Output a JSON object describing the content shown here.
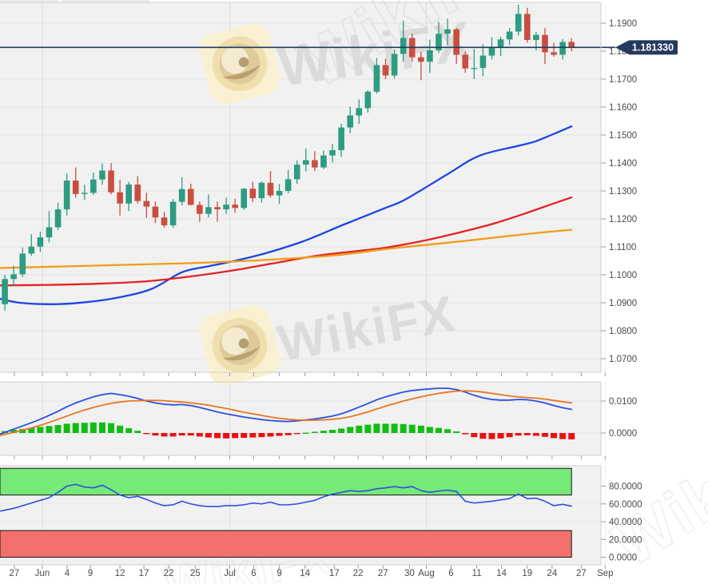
{
  "app": {
    "watermark_text": "WikiFX",
    "price_label": "1.181330"
  },
  "colors": {
    "candle_up": "#2d9c80",
    "candle_down": "#c94e3f",
    "ma_fast": "#1b46e3",
    "ma_mid": "#e32222",
    "ma_slow": "#f29b1b",
    "macd_line": "#2b50e0",
    "macd_signal": "#e8761f",
    "hist_up": "#12bd12",
    "hist_down": "#ea1111",
    "rsi_line": "#2b50e0",
    "band_green": "#76e976",
    "band_red": "#f3716c",
    "band_border": "#161616",
    "price_line": "#1f3b62",
    "label_bg": "#24395e",
    "label_text": "#ffffff",
    "panel_bg": "#f1f1f1",
    "grid": "#e4e4e4",
    "grid_month": "#dcdcdc",
    "grid_faint": "#ececec",
    "border": "#cfcfcf",
    "tick_text": "#4a4a4a",
    "axis_dash": "#999999",
    "watermark_gray": "#d8d8d8",
    "watermark_logo_bg": "#f8efcd",
    "watermark_logo_ring": "#efdfae",
    "watermark_logo_core": "#d9c08b"
  },
  "x_axis": {
    "ticks": [
      {
        "label": "27",
        "i": 2.07
      },
      {
        "label": "Jun",
        "i": 5.23
      },
      {
        "label": "4",
        "i": 8.03
      },
      {
        "label": "9",
        "i": 10.65
      },
      {
        "label": "12",
        "i": 14.0
      },
      {
        "label": "17",
        "i": 16.7
      },
      {
        "label": "22",
        "i": 19.5
      },
      {
        "label": "25",
        "i": 22.5
      },
      {
        "label": "Jul",
        "i": 26.4
      },
      {
        "label": "6",
        "i": 29.1
      },
      {
        "label": "9",
        "i": 32.0
      },
      {
        "label": "14",
        "i": 34.9
      },
      {
        "label": "17",
        "i": 38.2
      },
      {
        "label": "22",
        "i": 40.9
      },
      {
        "label": "27",
        "i": 43.7
      },
      {
        "label": "30",
        "i": 46.7
      },
      {
        "label": "Aug",
        "i": 48.6
      },
      {
        "label": "6",
        "i": 51.4
      },
      {
        "label": "11",
        "i": 54.3
      },
      {
        "label": "14",
        "i": 57.1
      },
      {
        "label": "19",
        "i": 60.0
      },
      {
        "label": "24",
        "i": 62.8
      },
      {
        "label": "27",
        "i": 66.1
      },
      {
        "label": "Sep",
        "i": 68.8
      }
    ],
    "month_labels": [
      "Jun",
      "Jul",
      "Aug",
      "Sep"
    ]
  },
  "chart_data": [
    {
      "type": "candlestick",
      "name": "price-panel",
      "ylim": [
        1.0651,
        1.1974
      ],
      "y_ticks": [
        {
          "label": "1.1900",
          "v": 1.19
        },
        {
          "label": "1.1800",
          "v": 1.18
        },
        {
          "label": "1.1700",
          "v": 1.17
        },
        {
          "label": "1.1600",
          "v": 1.16
        },
        {
          "label": "1.1500",
          "v": 1.15
        },
        {
          "label": "1.1400",
          "v": 1.14
        },
        {
          "label": "1.1300",
          "v": 1.13
        },
        {
          "label": "1.1200",
          "v": 1.12
        },
        {
          "label": "1.1100",
          "v": 1.11
        },
        {
          "label": "1.1000",
          "v": 1.1
        },
        {
          "label": "1.0900",
          "v": 1.09
        },
        {
          "label": "1.0800",
          "v": 1.08
        },
        {
          "label": "1.0700",
          "v": 1.07
        }
      ],
      "price_line_value": 1.18133,
      "candles": [
        [
          1.0912,
          1.0925,
          1.0878,
          1.0895
        ],
        [
          1.0895,
          1.1,
          1.0872,
          1.0985
        ],
        [
          1.0985,
          1.1032,
          1.096,
          1.1002
        ],
        [
          1.1002,
          1.1098,
          1.0992,
          1.1076
        ],
        [
          1.1076,
          1.1145,
          1.1068,
          1.1101
        ],
        [
          1.1101,
          1.1154,
          1.1082,
          1.1134
        ],
        [
          1.1134,
          1.1228,
          1.1116,
          1.117
        ],
        [
          1.117,
          1.1258,
          1.116,
          1.1234
        ],
        [
          1.1234,
          1.1362,
          1.1212,
          1.1337
        ],
        [
          1.1337,
          1.1384,
          1.1276,
          1.1289
        ],
        [
          1.1289,
          1.1322,
          1.1268,
          1.1293
        ],
        [
          1.1293,
          1.1366,
          1.1285,
          1.1341
        ],
        [
          1.1341,
          1.1398,
          1.1322,
          1.1373
        ],
        [
          1.1373,
          1.14,
          1.1288,
          1.1295
        ],
        [
          1.1295,
          1.134,
          1.1212,
          1.1255
        ],
        [
          1.1255,
          1.1333,
          1.1228,
          1.1323
        ],
        [
          1.1323,
          1.1353,
          1.1255,
          1.1264
        ],
        [
          1.1264,
          1.1294,
          1.1204,
          1.1244
        ],
        [
          1.1244,
          1.1262,
          1.1185,
          1.1205
        ],
        [
          1.1205,
          1.1225,
          1.1168,
          1.1177
        ],
        [
          1.1177,
          1.1271,
          1.1168,
          1.1261
        ],
        [
          1.1261,
          1.1349,
          1.1248,
          1.1307
        ],
        [
          1.1307,
          1.1326,
          1.1248,
          1.125
        ],
        [
          1.125,
          1.1262,
          1.119,
          1.1218
        ],
        [
          1.1218,
          1.1287,
          1.1205,
          1.1242
        ],
        [
          1.1242,
          1.1262,
          1.119,
          1.1234
        ],
        [
          1.1234,
          1.1276,
          1.1218,
          1.1251
        ],
        [
          1.1251,
          1.1272,
          1.1222,
          1.1239
        ],
        [
          1.1239,
          1.131,
          1.1232,
          1.1308
        ],
        [
          1.1308,
          1.1333,
          1.126,
          1.1274
        ],
        [
          1.1274,
          1.1334,
          1.1258,
          1.1329
        ],
        [
          1.1329,
          1.1371,
          1.1276,
          1.1284
        ],
        [
          1.1284,
          1.1325,
          1.1254,
          1.13
        ],
        [
          1.13,
          1.1375,
          1.1292,
          1.1342
        ],
        [
          1.1342,
          1.1409,
          1.1325,
          1.1394
        ],
        [
          1.1394,
          1.1452,
          1.137,
          1.141
        ],
        [
          1.141,
          1.1442,
          1.1371,
          1.1384
        ],
        [
          1.1384,
          1.1444,
          1.1378,
          1.1427
        ],
        [
          1.1427,
          1.1468,
          1.1402,
          1.1446
        ],
        [
          1.1446,
          1.154,
          1.1422,
          1.1527
        ],
        [
          1.1527,
          1.1601,
          1.1507,
          1.157
        ],
        [
          1.157,
          1.1627,
          1.154,
          1.1596
        ],
        [
          1.1596,
          1.166,
          1.158,
          1.1655
        ],
        [
          1.1655,
          1.1775,
          1.1648,
          1.175
        ],
        [
          1.175,
          1.1773,
          1.17,
          1.1713
        ],
        [
          1.1713,
          1.1806,
          1.1702,
          1.179
        ],
        [
          1.179,
          1.1909,
          1.1762,
          1.1847
        ],
        [
          1.1847,
          1.1863,
          1.1762,
          1.1778
        ],
        [
          1.1778,
          1.1797,
          1.1696,
          1.1762
        ],
        [
          1.1762,
          1.1841,
          1.1722,
          1.1803
        ],
        [
          1.1803,
          1.1905,
          1.1793,
          1.1862
        ],
        [
          1.1862,
          1.1916,
          1.1822,
          1.1878
        ],
        [
          1.1878,
          1.1884,
          1.1754,
          1.1787
        ],
        [
          1.1787,
          1.1798,
          1.1722,
          1.1738
        ],
        [
          1.1738,
          1.1808,
          1.17,
          1.174
        ],
        [
          1.174,
          1.1824,
          1.171,
          1.1784
        ],
        [
          1.1784,
          1.185,
          1.177,
          1.1813
        ],
        [
          1.1813,
          1.1851,
          1.1782,
          1.1842
        ],
        [
          1.1842,
          1.1883,
          1.1822,
          1.187
        ],
        [
          1.187,
          1.1966,
          1.1856,
          1.1933
        ],
        [
          1.1933,
          1.1955,
          1.183,
          1.184
        ],
        [
          1.184,
          1.1868,
          1.1802,
          1.1858
        ],
        [
          1.1858,
          1.1882,
          1.1754,
          1.1796
        ],
        [
          1.1796,
          1.183,
          1.178,
          1.1787
        ],
        [
          1.1787,
          1.1843,
          1.177,
          1.1833
        ],
        [
          1.1833,
          1.1846,
          1.18,
          1.1813
        ]
      ],
      "ma": [
        {
          "name": "ma-fast-blue",
          "color_key": "ma_fast",
          "points": [
            [
              0,
              1.0918
            ],
            [
              2.7,
              1.09
            ],
            [
              6.8,
              1.0895
            ],
            [
              10.4,
              1.0903
            ],
            [
              14.0,
              1.092
            ],
            [
              17.6,
              1.095
            ],
            [
              21.0,
              1.1009
            ],
            [
              23.9,
              1.103
            ],
            [
              26.4,
              1.1046
            ],
            [
              30.2,
              1.1075
            ],
            [
              34.7,
              1.112
            ],
            [
              39.3,
              1.118
            ],
            [
              43.8,
              1.1237
            ],
            [
              46.2,
              1.1269
            ],
            [
              51.0,
              1.136
            ],
            [
              54.6,
              1.1426
            ],
            [
              59.1,
              1.1462
            ],
            [
              60.9,
              1.1477
            ],
            [
              62.7,
              1.15
            ],
            [
              65.0,
              1.1531
            ]
          ]
        },
        {
          "name": "ma-mid-red",
          "color_key": "ma_mid",
          "points": [
            [
              0,
              1.0962
            ],
            [
              5.9,
              1.0964
            ],
            [
              11.3,
              1.0968
            ],
            [
              16.7,
              1.0976
            ],
            [
              21.2,
              1.0991
            ],
            [
              26.4,
              1.1014
            ],
            [
              31.1,
              1.104
            ],
            [
              36.6,
              1.107
            ],
            [
              41.1,
              1.1086
            ],
            [
              44.0,
              1.1097
            ],
            [
              48.6,
              1.1124
            ],
            [
              52.8,
              1.1155
            ],
            [
              56.4,
              1.1185
            ],
            [
              60.0,
              1.1222
            ],
            [
              62.7,
              1.1252
            ],
            [
              65.0,
              1.1277
            ]
          ]
        },
        {
          "name": "ma-slow-orange",
          "color_key": "ma_slow",
          "points": [
            [
              0,
              1.1024
            ],
            [
              7.7,
              1.103
            ],
            [
              14.9,
              1.1036
            ],
            [
              21.2,
              1.1041
            ],
            [
              26.4,
              1.1047
            ],
            [
              32.0,
              1.1056
            ],
            [
              38.4,
              1.107
            ],
            [
              44.0,
              1.1092
            ],
            [
              48.6,
              1.1107
            ],
            [
              53.7,
              1.1124
            ],
            [
              58.2,
              1.114
            ],
            [
              61.8,
              1.1152
            ],
            [
              65.0,
              1.1161
            ]
          ]
        }
      ]
    },
    {
      "type": "macd",
      "name": "macd-panel",
      "y_ticks": [
        {
          "label": "0.0100",
          "v": 0.01
        },
        {
          "label": "0.0000",
          "v": 0.0
        }
      ],
      "macd": [
        -0.0008,
        0.0002,
        0.0012,
        0.0022,
        0.0032,
        0.0043,
        0.0055,
        0.0068,
        0.0082,
        0.0094,
        0.0104,
        0.0113,
        0.012,
        0.0124,
        0.012,
        0.0115,
        0.0108,
        0.01,
        0.0094,
        0.009,
        0.0088,
        0.0089,
        0.0086,
        0.008,
        0.0073,
        0.0066,
        0.006,
        0.0055,
        0.005,
        0.0046,
        0.0042,
        0.0039,
        0.0037,
        0.0036,
        0.0038,
        0.0041,
        0.0044,
        0.0048,
        0.0053,
        0.006,
        0.007,
        0.0081,
        0.0092,
        0.0104,
        0.0113,
        0.0121,
        0.0128,
        0.0133,
        0.0136,
        0.0138,
        0.014,
        0.014,
        0.0136,
        0.0128,
        0.0118,
        0.011,
        0.0105,
        0.0103,
        0.0103,
        0.0105,
        0.0104,
        0.01,
        0.0094,
        0.0086,
        0.0079,
        0.0074
      ],
      "signal": [
        -0.001,
        -0.0004,
        0.0002,
        0.0009,
        0.0016,
        0.0024,
        0.0033,
        0.0043,
        0.0053,
        0.0063,
        0.0072,
        0.008,
        0.0087,
        0.0093,
        0.0097,
        0.01,
        0.0101,
        0.0102,
        0.0102,
        0.0101,
        0.0099,
        0.0097,
        0.0094,
        0.0091,
        0.0087,
        0.0082,
        0.0077,
        0.0071,
        0.0065,
        0.006,
        0.0055,
        0.005,
        0.0046,
        0.0043,
        0.0041,
        0.004,
        0.004,
        0.0041,
        0.0043,
        0.0046,
        0.0051,
        0.0058,
        0.0066,
        0.0075,
        0.0084,
        0.0092,
        0.01,
        0.0107,
        0.0113,
        0.0119,
        0.0124,
        0.0128,
        0.0131,
        0.0132,
        0.0131,
        0.0128,
        0.0124,
        0.012,
        0.0116,
        0.0113,
        0.0111,
        0.0109,
        0.0106,
        0.0102,
        0.0098,
        0.0094
      ]
    },
    {
      "type": "rsi",
      "name": "oscillator-panel",
      "y_ticks": [
        {
          "label": "80.0000",
          "v": 80
        },
        {
          "label": "60.0000",
          "v": 60
        },
        {
          "label": "40.0000",
          "v": 40
        },
        {
          "label": "20.0000",
          "v": 20
        },
        {
          "label": "0.0000",
          "v": 0
        }
      ],
      "overbought": 70,
      "oversold": 30,
      "scale_max": 100,
      "scale_min": 0,
      "values": [
        51,
        53,
        55,
        58,
        61,
        64,
        67,
        73,
        80,
        82,
        79,
        78,
        81,
        76,
        70,
        67,
        68.5,
        65,
        61,
        58,
        59,
        63,
        60,
        58,
        57,
        57,
        58,
        58,
        59,
        61,
        60,
        62,
        59,
        59,
        60,
        62,
        64,
        68,
        71,
        73,
        75,
        74,
        75,
        77,
        78,
        79.5,
        78,
        79.5,
        75,
        73,
        74.5,
        75.5,
        74,
        63,
        61,
        62,
        63,
        64.5,
        66,
        71,
        66,
        66.5,
        63,
        58,
        59.5,
        57.5
      ]
    }
  ]
}
